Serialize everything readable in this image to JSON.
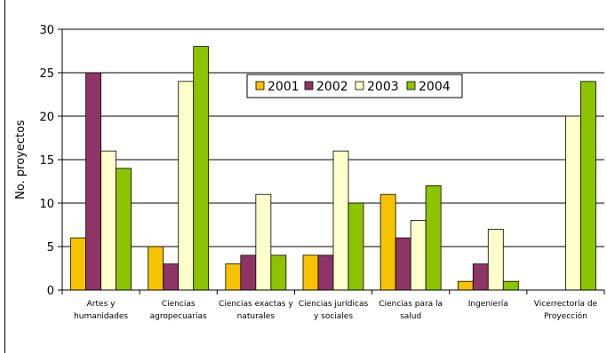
{
  "chart_data": {
    "type": "bar",
    "ylabel": "No. proyectos",
    "ylim": [
      0,
      30
    ],
    "yticks": [
      0,
      5,
      10,
      15,
      20,
      25,
      30
    ],
    "grid": true,
    "legend_position": "top-center",
    "categories": [
      [
        "Artes y",
        "humanidades"
      ],
      [
        "Ciencias",
        "agropecuarias"
      ],
      [
        "Ciencias exactas y",
        "naturales"
      ],
      [
        "Ciencias jurídicas",
        "y sociales"
      ],
      [
        "Ciencias para la",
        "salud"
      ],
      [
        "Ingeniería"
      ],
      [
        "Vicerrectoría de",
        "Proyección"
      ]
    ],
    "series": [
      {
        "name": "2001",
        "color": "#F7C300",
        "values": [
          6,
          5,
          3,
          4,
          11,
          1,
          0
        ]
      },
      {
        "name": "2002",
        "color": "#8E3566",
        "values": [
          25,
          3,
          4,
          4,
          6,
          3,
          0
        ]
      },
      {
        "name": "2003",
        "color": "#FFFFCC",
        "values": [
          16,
          24,
          11,
          16,
          8,
          7,
          20
        ]
      },
      {
        "name": "2004",
        "color": "#8CC400",
        "values": [
          14,
          28,
          4,
          10,
          12,
          1,
          24
        ]
      }
    ]
  }
}
